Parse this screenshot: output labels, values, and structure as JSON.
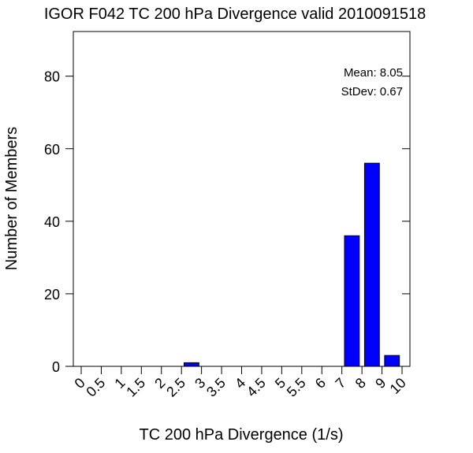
{
  "chart_data": {
    "type": "bar",
    "title": "IGOR F042 TC 200 hPa Divergence valid 2010091518",
    "xlabel": "TC 200 hPa Divergence (1/s)",
    "ylabel": "Number of Members",
    "xlim": [
      0,
      10
    ],
    "ylim": [
      0,
      96
    ],
    "x_ticks": [
      "0",
      "0.5",
      "1",
      "1.5",
      "2",
      "2.5",
      "3",
      "3.5",
      "4",
      "4.5",
      "5",
      "5.5",
      "6",
      "7",
      "8",
      "9",
      "10"
    ],
    "y_ticks": [
      0,
      20,
      40,
      60,
      80
    ],
    "bins": [
      {
        "from": "2.5",
        "to": "3",
        "value": 1
      },
      {
        "from": "7",
        "to": "8",
        "value": 36
      },
      {
        "from": "8",
        "to": "9",
        "value": 56
      },
      {
        "from": "9",
        "to": "10",
        "value": 3
      }
    ],
    "bar_color": "#0000ff",
    "grid": false,
    "annotations": {
      "mean": "Mean: 8.05",
      "stdev": "StDev: 0.67"
    }
  }
}
